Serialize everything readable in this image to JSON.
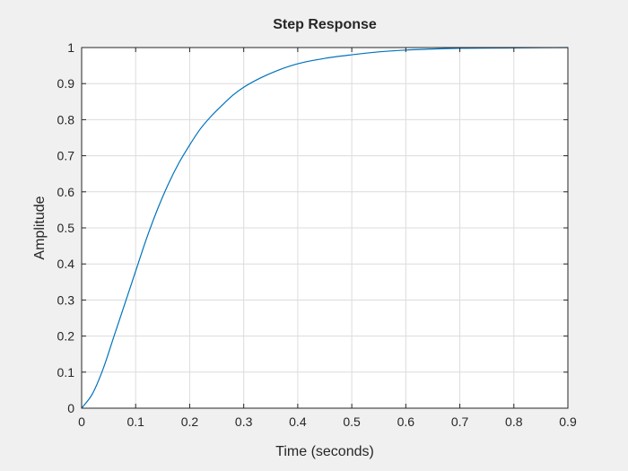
{
  "chart_data": {
    "type": "line",
    "title": "Step Response",
    "xlabel": "Time (seconds)",
    "ylabel": "Amplitude",
    "xlim": [
      0,
      0.9
    ],
    "ylim": [
      0,
      1
    ],
    "xticks": [
      "0",
      "0.1",
      "0.2",
      "0.3",
      "0.4",
      "0.5",
      "0.6",
      "0.7",
      "0.8",
      "0.9"
    ],
    "yticks": [
      "0",
      "0.1",
      "0.2",
      "0.3",
      "0.4",
      "0.5",
      "0.6",
      "0.7",
      "0.8",
      "0.9",
      "1"
    ],
    "grid": true,
    "series": [
      {
        "color": "#0072bd",
        "x": [
          0,
          0.02,
          0.04,
          0.06,
          0.08,
          0.1,
          0.12,
          0.14,
          0.16,
          0.18,
          0.2,
          0.22,
          0.24,
          0.26,
          0.28,
          0.3,
          0.33,
          0.36,
          0.4,
          0.45,
          0.5,
          0.55,
          0.6,
          0.65,
          0.7,
          0.8,
          0.9
        ],
        "y": [
          0,
          0.04,
          0.11,
          0.2,
          0.29,
          0.38,
          0.47,
          0.55,
          0.62,
          0.68,
          0.73,
          0.775,
          0.81,
          0.84,
          0.868,
          0.89,
          0.915,
          0.935,
          0.955,
          0.97,
          0.98,
          0.988,
          0.993,
          0.996,
          0.998,
          0.999,
          1.0
        ]
      }
    ]
  }
}
